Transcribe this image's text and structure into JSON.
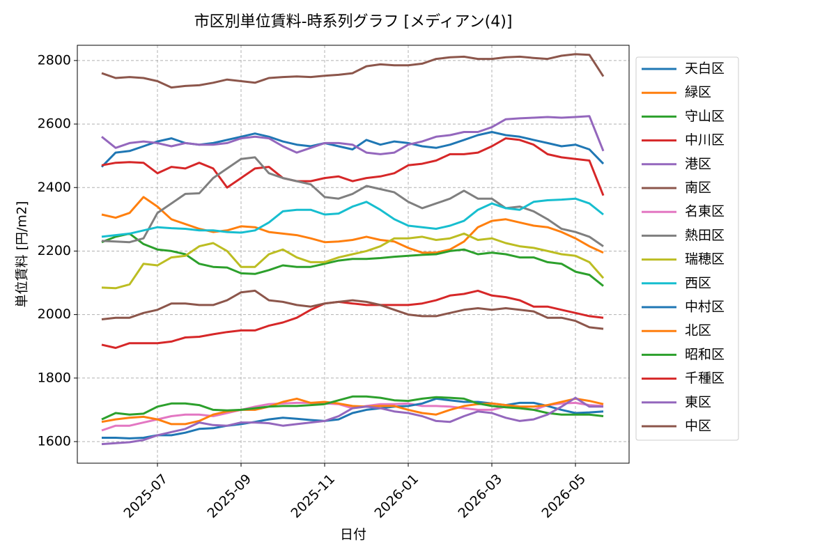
{
  "chart_data": {
    "type": "line",
    "title": "市区別単位賃料-時系列グラフ [メディアン(4)]",
    "xlabel": "日付",
    "ylabel": "単位賃料 [円/m2]",
    "categories": [
      null,
      null,
      null,
      null,
      "2025-07",
      null,
      null,
      null,
      null,
      null,
      "2025-09",
      null,
      null,
      null,
      null,
      null,
      "2025-11",
      null,
      null,
      null,
      null,
      null,
      "2026-01",
      null,
      null,
      null,
      null,
      null,
      "2026-03",
      null,
      null,
      null,
      null,
      null,
      "2026-05",
      null,
      null
    ],
    "ylim": [
      1532,
      2848
    ],
    "yticks": [
      1600,
      1800,
      2000,
      2200,
      2400,
      2600,
      2800
    ],
    "grid": true,
    "legend": "right",
    "series": [
      {
        "name": "天白区",
        "color": "#1f77b4",
        "values": [
          2465,
          2510,
          2515,
          2530,
          2545,
          2555,
          2540,
          2535,
          2540,
          2550,
          2560,
          2570,
          2560,
          2545,
          2535,
          2530,
          2540,
          2530,
          2520,
          2550,
          2535,
          2545,
          2540,
          2530,
          2525,
          2535,
          2550,
          2565,
          2575,
          2565,
          2560,
          2550,
          2540,
          2530,
          2535,
          2520,
          2475
        ]
      },
      {
        "name": "緑区",
        "color": "#ff7f0e",
        "values": [
          2315,
          2305,
          2320,
          2370,
          2340,
          2300,
          2285,
          2270,
          2260,
          2265,
          2278,
          2275,
          2260,
          2255,
          2250,
          2240,
          2228,
          2230,
          2235,
          2245,
          2235,
          2230,
          2210,
          2195,
          2195,
          2205,
          2230,
          2275,
          2295,
          2300,
          2290,
          2280,
          2275,
          2260,
          2240,
          2215,
          2195
        ]
      },
      {
        "name": "守山区",
        "color": "#2ca02c",
        "values": [
          2228,
          2245,
          2255,
          2222,
          2205,
          2200,
          2190,
          2160,
          2150,
          2148,
          2130,
          2128,
          2140,
          2155,
          2150,
          2150,
          2160,
          2170,
          2175,
          2175,
          2178,
          2182,
          2185,
          2188,
          2190,
          2200,
          2205,
          2190,
          2195,
          2190,
          2180,
          2180,
          2165,
          2160,
          2135,
          2125,
          2090
        ]
      },
      {
        "name": "中川区",
        "color": "#d62728",
        "values": [
          2470,
          2478,
          2480,
          2478,
          2445,
          2465,
          2460,
          2478,
          2460,
          2400,
          2430,
          2460,
          2465,
          2430,
          2420,
          2420,
          2430,
          2435,
          2420,
          2430,
          2435,
          2445,
          2470,
          2475,
          2485,
          2505,
          2505,
          2510,
          2530,
          2555,
          2550,
          2535,
          2505,
          2495,
          2490,
          2485,
          2375
        ]
      },
      {
        "name": "港区",
        "color": "#9467bd",
        "values": [
          2560,
          2525,
          2540,
          2545,
          2540,
          2530,
          2540,
          2535,
          2535,
          2540,
          2555,
          2560,
          2555,
          2530,
          2510,
          2525,
          2540,
          2540,
          2535,
          2510,
          2505,
          2510,
          2535,
          2545,
          2560,
          2565,
          2575,
          2575,
          2590,
          2615,
          2618,
          2620,
          2622,
          2620,
          2622,
          2625,
          2515
        ]
      },
      {
        "name": "南区",
        "color": "#8c564b",
        "values": [
          2760,
          2745,
          2748,
          2745,
          2735,
          2715,
          2720,
          2722,
          2730,
          2740,
          2735,
          2730,
          2745,
          2748,
          2750,
          2748,
          2752,
          2755,
          2760,
          2782,
          2788,
          2785,
          2785,
          2790,
          2805,
          2810,
          2812,
          2805,
          2805,
          2810,
          2812,
          2808,
          2805,
          2815,
          2820,
          2818,
          2750
        ]
      },
      {
        "name": "名東区",
        "color": "#e377c2",
        "values": [
          1635,
          1650,
          1650,
          1660,
          1670,
          1680,
          1685,
          1685,
          1680,
          1690,
          1700,
          1710,
          1718,
          1720,
          1722,
          1722,
          1720,
          1718,
          1705,
          1712,
          1718,
          1718,
          1720,
          1712,
          1712,
          1710,
          1705,
          1700,
          1700,
          1710,
          1708,
          1700,
          1715,
          1720,
          1722,
          1715,
          1712
        ]
      },
      {
        "name": "熱田区",
        "color": "#7f7f7f",
        "values": [
          2232,
          2230,
          2228,
          2240,
          2320,
          2350,
          2380,
          2382,
          2430,
          2460,
          2490,
          2495,
          2445,
          2430,
          2420,
          2410,
          2370,
          2365,
          2380,
          2405,
          2395,
          2385,
          2355,
          2335,
          2350,
          2365,
          2390,
          2365,
          2365,
          2335,
          2340,
          2325,
          2300,
          2270,
          2260,
          2245,
          2215
        ]
      },
      {
        "name": "瑞穂区",
        "color": "#bcbd22",
        "values": [
          2085,
          2083,
          2095,
          2160,
          2155,
          2180,
          2185,
          2215,
          2225,
          2200,
          2150,
          2150,
          2190,
          2205,
          2180,
          2165,
          2165,
          2180,
          2190,
          2200,
          2215,
          2240,
          2240,
          2245,
          2235,
          2240,
          2255,
          2235,
          2240,
          2225,
          2215,
          2210,
          2200,
          2190,
          2185,
          2165,
          2115
        ]
      },
      {
        "name": "西区",
        "color": "#17becf",
        "values": [
          2245,
          2250,
          2255,
          2265,
          2275,
          2272,
          2270,
          2265,
          2265,
          2260,
          2258,
          2265,
          2290,
          2325,
          2330,
          2330,
          2315,
          2318,
          2340,
          2355,
          2330,
          2300,
          2280,
          2275,
          2270,
          2280,
          2295,
          2330,
          2350,
          2335,
          2330,
          2355,
          2360,
          2362,
          2365,
          2350,
          2315
        ]
      },
      {
        "name": "中村区",
        "color": "#1f77b4",
        "values": [
          1612,
          1612,
          1610,
          1612,
          1620,
          1620,
          1628,
          1640,
          1642,
          1650,
          1655,
          1662,
          1670,
          1675,
          1672,
          1668,
          1665,
          1670,
          1690,
          1700,
          1705,
          1710,
          1712,
          1720,
          1735,
          1730,
          1725,
          1725,
          1720,
          1715,
          1722,
          1722,
          1712,
          1700,
          1690,
          1692,
          1695
        ]
      },
      {
        "name": "北区",
        "color": "#ff7f0e",
        "values": [
          1662,
          1670,
          1675,
          1678,
          1670,
          1655,
          1655,
          1665,
          1685,
          1695,
          1700,
          1700,
          1710,
          1725,
          1735,
          1722,
          1725,
          1720,
          1712,
          1710,
          1712,
          1712,
          1700,
          1690,
          1685,
          1700,
          1712,
          1718,
          1720,
          1715,
          1710,
          1710,
          1715,
          1725,
          1735,
          1728,
          1718
        ]
      },
      {
        "name": "昭和区",
        "color": "#2ca02c",
        "values": [
          1670,
          1690,
          1685,
          1688,
          1710,
          1720,
          1720,
          1715,
          1700,
          1698,
          1700,
          1705,
          1710,
          1712,
          1712,
          1715,
          1718,
          1730,
          1742,
          1742,
          1738,
          1730,
          1728,
          1735,
          1740,
          1738,
          1735,
          1720,
          1712,
          1708,
          1705,
          1700,
          1690,
          1685,
          1685,
          1685,
          1680
        ]
      },
      {
        "name": "千種区",
        "color": "#d62728",
        "values": [
          1905,
          1895,
          1910,
          1910,
          1910,
          1915,
          1928,
          1930,
          1938,
          1945,
          1950,
          1950,
          1965,
          1975,
          1990,
          2015,
          2035,
          2040,
          2035,
          2030,
          2030,
          2030,
          2030,
          2035,
          2045,
          2060,
          2065,
          2075,
          2060,
          2055,
          2045,
          2025,
          2025,
          2015,
          2005,
          1995,
          1990
        ]
      },
      {
        "name": "東区",
        "color": "#9467bd",
        "values": [
          1592,
          1595,
          1598,
          1605,
          1620,
          1630,
          1640,
          1660,
          1652,
          1650,
          1660,
          1660,
          1658,
          1650,
          1655,
          1660,
          1665,
          1680,
          1705,
          1710,
          1705,
          1695,
          1690,
          1680,
          1665,
          1662,
          1680,
          1695,
          1690,
          1675,
          1665,
          1670,
          1685,
          1710,
          1738,
          1710,
          1710
        ]
      },
      {
        "name": "中区",
        "color": "#8c564b",
        "values": [
          1985,
          1990,
          1990,
          2005,
          2015,
          2035,
          2035,
          2030,
          2030,
          2045,
          2070,
          2075,
          2045,
          2040,
          2030,
          2025,
          2035,
          2040,
          2045,
          2040,
          2030,
          2015,
          2000,
          1995,
          1995,
          2005,
          2015,
          2020,
          2015,
          2020,
          2015,
          2010,
          1990,
          1990,
          1980,
          1960,
          1955
        ]
      }
    ]
  }
}
